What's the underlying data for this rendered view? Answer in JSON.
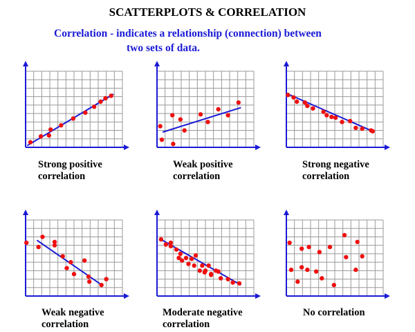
{
  "title": "SCATTERPLOTS & CORRELATION",
  "subtitle": {
    "line1": "Correlation - indicates a relationship (connection) between",
    "line2": "two sets of data."
  },
  "colors": {
    "point": "#ee1111",
    "line": "#1a1ad6",
    "axis": "#1a1ad6",
    "grid": "#999999",
    "text": "#000000",
    "subtitle": "#1a1ad6"
  },
  "chart_data": [
    {
      "type": "scatter",
      "caption": [
        "Strong positive",
        "correlation"
      ],
      "xlim": [
        0,
        12
      ],
      "ylim": [
        0,
        9
      ],
      "points": [
        [
          0.6,
          0.6
        ],
        [
          1.9,
          1.3
        ],
        [
          2.9,
          1.4
        ],
        [
          3.1,
          2.1
        ],
        [
          4.4,
          2.6
        ],
        [
          5.9,
          3.4
        ],
        [
          7.4,
          4.1
        ],
        [
          8.5,
          4.8
        ],
        [
          9.3,
          5.4
        ],
        [
          9.9,
          5.8
        ],
        [
          10.6,
          6.1
        ]
      ],
      "trend": [
        [
          0.2,
          0.2
        ],
        [
          10.9,
          6.3
        ]
      ]
    },
    {
      "type": "scatter",
      "caption": [
        "Weak positive",
        "correlation"
      ],
      "xlim": [
        0,
        12
      ],
      "ylim": [
        0,
        9
      ],
      "points": [
        [
          0.4,
          2.5
        ],
        [
          0.6,
          0.9
        ],
        [
          1.9,
          3.8
        ],
        [
          2.0,
          0.4
        ],
        [
          2.9,
          3.3
        ],
        [
          3.4,
          2.0
        ],
        [
          5.4,
          3.9
        ],
        [
          6.3,
          3.0
        ],
        [
          7.6,
          4.5
        ],
        [
          8.8,
          3.8
        ],
        [
          10.1,
          5.3
        ]
      ],
      "trend": [
        [
          0.7,
          1.8
        ],
        [
          10.4,
          4.7
        ]
      ]
    },
    {
      "type": "scatter",
      "caption": [
        "Strong negative",
        "correlation"
      ],
      "xlim": [
        0,
        12
      ],
      "ylim": [
        0,
        9
      ],
      "points": [
        [
          0.2,
          6.2
        ],
        [
          0.9,
          5.9
        ],
        [
          1.3,
          5.4
        ],
        [
          2.3,
          5.3
        ],
        [
          2.6,
          4.9
        ],
        [
          3.3,
          4.6
        ],
        [
          4.6,
          4.2
        ],
        [
          5.0,
          3.8
        ],
        [
          5.6,
          3.6
        ],
        [
          6.1,
          3.5
        ],
        [
          6.9,
          3.0
        ],
        [
          7.9,
          3.1
        ],
        [
          8.6,
          2.3
        ],
        [
          9.4,
          2.2
        ],
        [
          10.5,
          2.0
        ],
        [
          10.7,
          1.9
        ]
      ],
      "trend": [
        [
          0.2,
          6.3
        ],
        [
          10.7,
          1.9
        ]
      ]
    },
    {
      "type": "scatter",
      "caption": [
        "Weak negative",
        "correlation"
      ],
      "xlim": [
        0,
        12
      ],
      "ylim": [
        0,
        9
      ],
      "points": [
        [
          0.1,
          6.3
        ],
        [
          1.6,
          5.8
        ],
        [
          2.1,
          7.0
        ],
        [
          3.6,
          6.4
        ],
        [
          3.6,
          6.0
        ],
        [
          4.6,
          4.7
        ],
        [
          5.6,
          4.0
        ],
        [
          5.1,
          3.3
        ],
        [
          6.0,
          2.6
        ],
        [
          7.3,
          4.2
        ],
        [
          7.8,
          2.3
        ],
        [
          7.9,
          1.7
        ],
        [
          9.4,
          1.3
        ],
        [
          10.0,
          2.0
        ]
      ],
      "trend": [
        [
          1.4,
          6.6
        ],
        [
          9.6,
          1.2
        ]
      ]
    },
    {
      "type": "scatter",
      "caption": [
        "Moderate negative",
        "correlation"
      ],
      "xlim": [
        0,
        12
      ],
      "ylim": [
        0,
        9
      ],
      "points": [
        [
          0.5,
          6.7
        ],
        [
          1.1,
          6.1
        ],
        [
          1.7,
          6.3
        ],
        [
          1.7,
          5.9
        ],
        [
          2.4,
          5.5
        ],
        [
          2.9,
          5.0
        ],
        [
          2.7,
          4.5
        ],
        [
          3.1,
          4.2
        ],
        [
          3.9,
          3.8
        ],
        [
          3.6,
          4.5
        ],
        [
          4.3,
          4.4
        ],
        [
          4.6,
          3.6
        ],
        [
          4.8,
          4.8
        ],
        [
          5.3,
          3.0
        ],
        [
          5.6,
          3.6
        ],
        [
          6.0,
          3.0
        ],
        [
          5.9,
          2.8
        ],
        [
          6.4,
          3.6
        ],
        [
          6.7,
          2.6
        ],
        [
          6.7,
          2.5
        ],
        [
          7.3,
          3.0
        ],
        [
          7.6,
          2.9
        ],
        [
          7.9,
          2.1
        ],
        [
          8.8,
          2.0
        ],
        [
          9.4,
          1.6
        ],
        [
          10.2,
          1.5
        ]
      ],
      "trend": [
        [
          0.3,
          6.8
        ],
        [
          10.4,
          1.3
        ]
      ]
    },
    {
      "type": "scatter",
      "caption": [
        "No correlation"
      ],
      "xlim": [
        0,
        12
      ],
      "ylim": [
        0,
        9
      ],
      "points": [
        [
          0.4,
          6.3
        ],
        [
          0.6,
          3.1
        ],
        [
          1.4,
          1.7
        ],
        [
          1.9,
          5.6
        ],
        [
          1.9,
          3.4
        ],
        [
          2.6,
          3.1
        ],
        [
          2.8,
          5.8
        ],
        [
          3.7,
          2.9
        ],
        [
          4.1,
          5.2
        ],
        [
          4.4,
          2.1
        ],
        [
          5.4,
          5.8
        ],
        [
          5.9,
          1.3
        ],
        [
          7.2,
          7.2
        ],
        [
          7.4,
          4.6
        ],
        [
          8.6,
          3.1
        ],
        [
          8.8,
          6.4
        ],
        [
          9.4,
          4.7
        ]
      ]
    }
  ]
}
